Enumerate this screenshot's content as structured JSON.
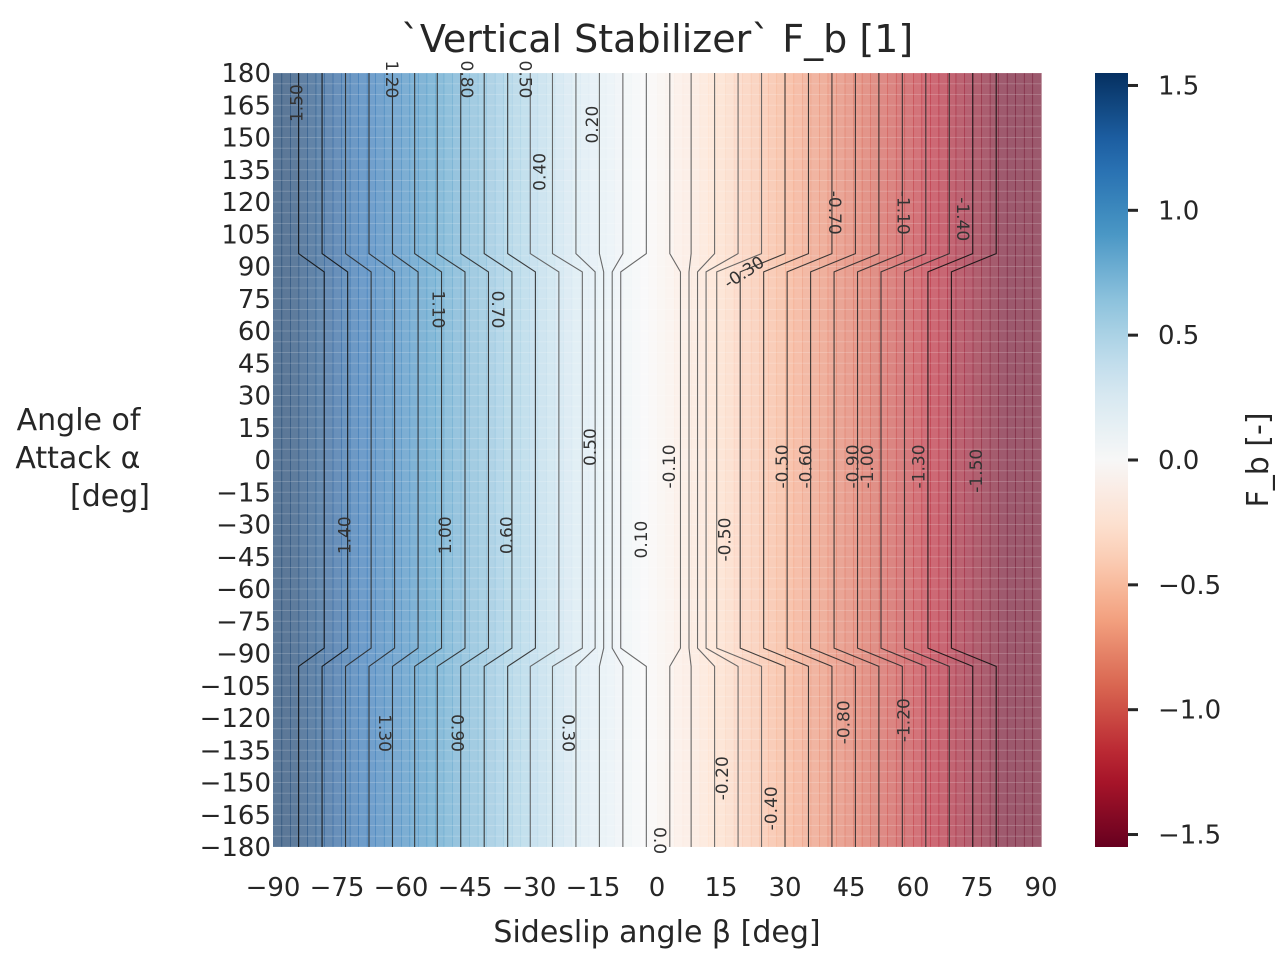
{
  "chart_data": {
    "type": "heatmap",
    "title": "`Vertical Stabilizer` F_b [1]",
    "xlabel": "Sideslip angle β [deg]",
    "ylabel_lines": [
      "Angle of",
      "Attack α",
      "[deg]"
    ],
    "colorbar_label": "F_b [-]",
    "xlim": [
      -90,
      90
    ],
    "ylim": [
      -180,
      180
    ],
    "x_ticks": [
      -90,
      -75,
      -60,
      -45,
      -30,
      -15,
      0,
      15,
      30,
      45,
      60,
      75,
      90
    ],
    "x_tick_labels": [
      "−90",
      "−75",
      "−60",
      "−45",
      "−30",
      "−15",
      "0",
      "15",
      "30",
      "45",
      "60",
      "75",
      "90"
    ],
    "y_ticks": [
      180,
      165,
      150,
      135,
      120,
      105,
      90,
      75,
      60,
      45,
      30,
      15,
      0,
      -15,
      -30,
      -45,
      -60,
      -75,
      -90,
      -105,
      -120,
      -135,
      -150,
      -165,
      -180
    ],
    "y_tick_labels": [
      "180",
      "165",
      "150",
      "135",
      "120",
      "105",
      "90",
      "75",
      "60",
      "45",
      "30",
      "15",
      "0",
      "−15",
      "−30",
      "−45",
      "−60",
      "−75",
      "−90",
      "−105",
      "−120",
      "−135",
      "−150",
      "−165",
      "−180"
    ],
    "colorbar_range": [
      -1.55,
      1.55
    ],
    "colorbar_ticks": [
      1.5,
      1.0,
      0.5,
      0.0,
      -0.5,
      -1.0,
      -1.5
    ],
    "colorbar_tick_labels": [
      "1.5",
      "1.0",
      "0.5",
      "0.0",
      "−0.5",
      "−1.0",
      "−1.5"
    ],
    "colormap": "RdBu",
    "colormap_stops": [
      "#67001f",
      "#b2182b",
      "#d6604d",
      "#f4a582",
      "#fddbc7",
      "#f7f7f7",
      "#d1e5f0",
      "#92c5de",
      "#4393c3",
      "#2166ac",
      "#053061"
    ],
    "contour_levels": [
      1.5,
      1.4,
      1.3,
      1.2,
      1.1,
      1.0,
      0.9,
      0.8,
      0.7,
      0.6,
      0.5,
      0.4,
      0.3,
      0.2,
      0.1,
      0.0,
      -0.1,
      -0.2,
      -0.3,
      -0.4,
      -0.5,
      -0.6,
      -0.7,
      -0.8,
      -0.9,
      -1.0,
      -1.1,
      -1.2,
      -1.3,
      -1.4,
      -1.5
    ],
    "contour_beta_normal": [
      -84,
      -78.5,
      -73,
      -67.5,
      -62,
      -56.8,
      -51.5,
      -46,
      -40.5,
      -35,
      -29.7,
      -24.5,
      -19,
      -13.5,
      -8,
      -2.5,
      3,
      8,
      13.5,
      19,
      24.5,
      30,
      35.5,
      41,
      46.5,
      52,
      57.5,
      63,
      68.5,
      74,
      79.5
    ],
    "contour_beta_mid": [
      -78,
      -72.5,
      -67,
      -61.5,
      -56,
      -50.5,
      -45,
      -39.5,
      -34,
      -28.5,
      -23,
      -17.5,
      -14.5,
      -12.5,
      -10.5,
      -8.5,
      5.5,
      7.5,
      9.5,
      11.5,
      14,
      19.5,
      25,
      30.5,
      36,
      41.5,
      47,
      52.5,
      58,
      63.5,
      69
    ],
    "contour_labels": [
      {
        "text": "1.50",
        "beta": -84.3,
        "alpha": 166,
        "rot": -90
      },
      {
        "text": "1.20",
        "beta": -62.3,
        "alpha": 177,
        "rot": 90
      },
      {
        "text": "0.80",
        "beta": -44.8,
        "alpha": 177,
        "rot": 90
      },
      {
        "text": "0.50",
        "beta": -31,
        "alpha": 177,
        "rot": 90
      },
      {
        "text": "0.20",
        "beta": -15,
        "alpha": 156,
        "rot": -90
      },
      {
        "text": "0.40",
        "beta": -27.3,
        "alpha": 134,
        "rot": -90
      },
      {
        "text": "-0.70",
        "beta": 41.5,
        "alpha": 115,
        "rot": 90
      },
      {
        "text": "-1.10",
        "beta": 57.5,
        "alpha": 115,
        "rot": 90
      },
      {
        "text": "-1.40",
        "beta": 71.5,
        "alpha": 112,
        "rot": 90
      },
      {
        "text": "-0.30",
        "beta": 20.5,
        "alpha": 87,
        "rot": -33
      },
      {
        "text": "1.10",
        "beta": -51.5,
        "alpha": 70,
        "rot": 90
      },
      {
        "text": "0.70",
        "beta": -37.5,
        "alpha": 70,
        "rot": 90
      },
      {
        "text": "0.50",
        "beta": -15.5,
        "alpha": 6,
        "rot": -90
      },
      {
        "text": "-0.10",
        "beta": 3,
        "alpha": -3,
        "rot": -90
      },
      {
        "text": "-0.50",
        "beta": 29.5,
        "alpha": -3,
        "rot": -90
      },
      {
        "text": "-0.60",
        "beta": 35,
        "alpha": -3,
        "rot": -90
      },
      {
        "text": "-0.90",
        "beta": 46,
        "alpha": -3,
        "rot": -90
      },
      {
        "text": "-1.00",
        "beta": 49.5,
        "alpha": -3,
        "rot": -90
      },
      {
        "text": "-1.30",
        "beta": 61.5,
        "alpha": -3,
        "rot": -90
      },
      {
        "text": "-1.50",
        "beta": 75,
        "alpha": -5,
        "rot": -90
      },
      {
        "text": "1.40",
        "beta": -73,
        "alpha": -35,
        "rot": -90
      },
      {
        "text": "1.00",
        "beta": -49.5,
        "alpha": -35,
        "rot": -90
      },
      {
        "text": "0.60",
        "beta": -35,
        "alpha": -35,
        "rot": -90
      },
      {
        "text": "0.10",
        "beta": -3.5,
        "alpha": -37,
        "rot": -90
      },
      {
        "text": "-0.50",
        "beta": 16,
        "alpha": -37,
        "rot": -90
      },
      {
        "text": "1.30",
        "beta": -64,
        "alpha": -127,
        "rot": 90
      },
      {
        "text": "0.90",
        "beta": -47,
        "alpha": -127,
        "rot": 90
      },
      {
        "text": "0.30",
        "beta": -21,
        "alpha": -127,
        "rot": 90
      },
      {
        "text": "-0.80",
        "beta": 44,
        "alpha": -122,
        "rot": -90
      },
      {
        "text": "-1.20",
        "beta": 58,
        "alpha": -121,
        "rot": -90
      },
      {
        "text": "-0.20",
        "beta": 15.5,
        "alpha": -148,
        "rot": -90
      },
      {
        "text": "-0.40",
        "beta": 27,
        "alpha": -162,
        "rot": -90
      },
      {
        "text": "0.0",
        "beta": 0.5,
        "alpha": -177,
        "rot": 90
      }
    ]
  }
}
